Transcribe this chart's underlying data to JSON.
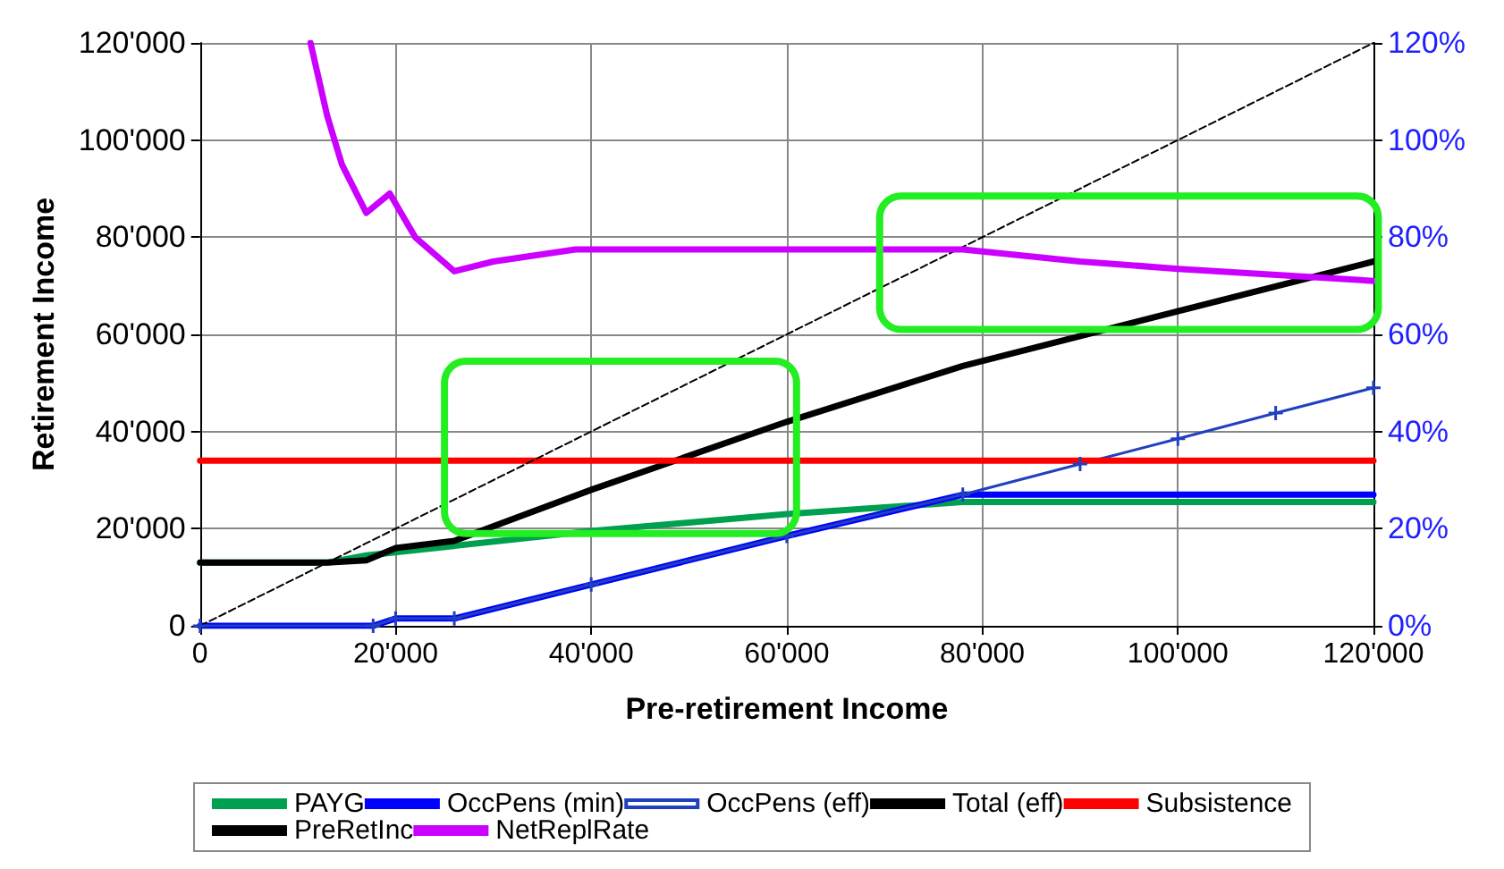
{
  "chart_data": {
    "type": "line",
    "xlabel": "Pre-retirement Income",
    "ylabel": "Retirement Income",
    "xlim": [
      0,
      120000
    ],
    "xticks": [
      0,
      {
        "value": 20000,
        "label": "20'000"
      },
      {
        "value": 40000,
        "label": "40'000"
      },
      {
        "value": 60000,
        "label": "60'000"
      },
      {
        "value": 80000,
        "label": "80'000"
      },
      {
        "value": 100000,
        "label": "100'000"
      },
      {
        "value": 120000,
        "label": "120'000"
      }
    ],
    "ylim": [
      0,
      120000
    ],
    "yticks": [
      0,
      {
        "value": 20000,
        "label": "20'000"
      },
      {
        "value": 40000,
        "label": "40'000"
      },
      {
        "value": 60000,
        "label": "60'000"
      },
      {
        "value": 80000,
        "label": "80'000"
      },
      {
        "value": 100000,
        "label": "100'000"
      },
      {
        "value": 120000,
        "label": "120'000"
      }
    ],
    "y2lim": [
      0,
      120
    ],
    "y2ticks": [
      {
        "value": 0,
        "label": "0%"
      },
      {
        "value": 20,
        "label": "20%"
      },
      {
        "value": 40,
        "label": "40%"
      },
      {
        "value": 60,
        "label": "60%"
      },
      {
        "value": 80,
        "label": "80%"
      },
      {
        "value": 100,
        "label": "100%"
      },
      {
        "value": 120,
        "label": "120%"
      }
    ],
    "grid": true,
    "legend": "bottom",
    "marker": "none",
    "line_style": "solid",
    "series": [
      {
        "name": "PAYG",
        "color": "#00a050",
        "x": [
          0,
          13000,
          17000,
          40000,
          60000,
          78000,
          120000
        ],
        "values": [
          13000,
          13000,
          14500,
          19500,
          23000,
          25500,
          25500
        ]
      },
      {
        "name": "OccPens (min)",
        "color": "#0000ff",
        "x": [
          0,
          17700,
          20000,
          26000,
          40000,
          60000,
          78000,
          120000
        ],
        "values": [
          0,
          0,
          1500,
          1500,
          8500,
          18500,
          27000,
          27000
        ]
      },
      {
        "name": "OccPens (eff)",
        "color": "#2040c0",
        "marker": "cross",
        "x": [
          0,
          17700,
          20000,
          26000,
          40000,
          60000,
          78000,
          90000,
          100000,
          110000,
          120000
        ],
        "values": [
          0,
          0,
          1500,
          1500,
          8500,
          18500,
          27000,
          33300,
          38500,
          43800,
          49000
        ]
      },
      {
        "name": "Total (eff)",
        "color": "#000000",
        "x": [
          0,
          13000,
          17000,
          20000,
          26000,
          40000,
          60000,
          78000,
          120000
        ],
        "values": [
          13000,
          13000,
          13500,
          16000,
          17500,
          28000,
          42000,
          53500,
          75000
        ]
      },
      {
        "name": "Subsistence",
        "color": "#ff0000",
        "x": [
          0,
          120000
        ],
        "values": [
          34000,
          34000
        ]
      },
      {
        "name": "PreRetInc",
        "color": "#000000",
        "line_style": "dashed",
        "x": [
          0,
          120000
        ],
        "values": [
          0,
          120000
        ]
      },
      {
        "name": "NetReplRate",
        "color": "#cc00ff",
        "axis": "y2",
        "x": [
          11300,
          13000,
          14500,
          17000,
          19400,
          22000,
          26000,
          30000,
          38400,
          78000,
          90000,
          100000,
          120000
        ],
        "values": [
          120,
          105,
          95,
          85,
          89,
          80,
          73,
          75,
          77.5,
          77.5,
          75,
          73.5,
          71
        ]
      }
    ]
  }
}
